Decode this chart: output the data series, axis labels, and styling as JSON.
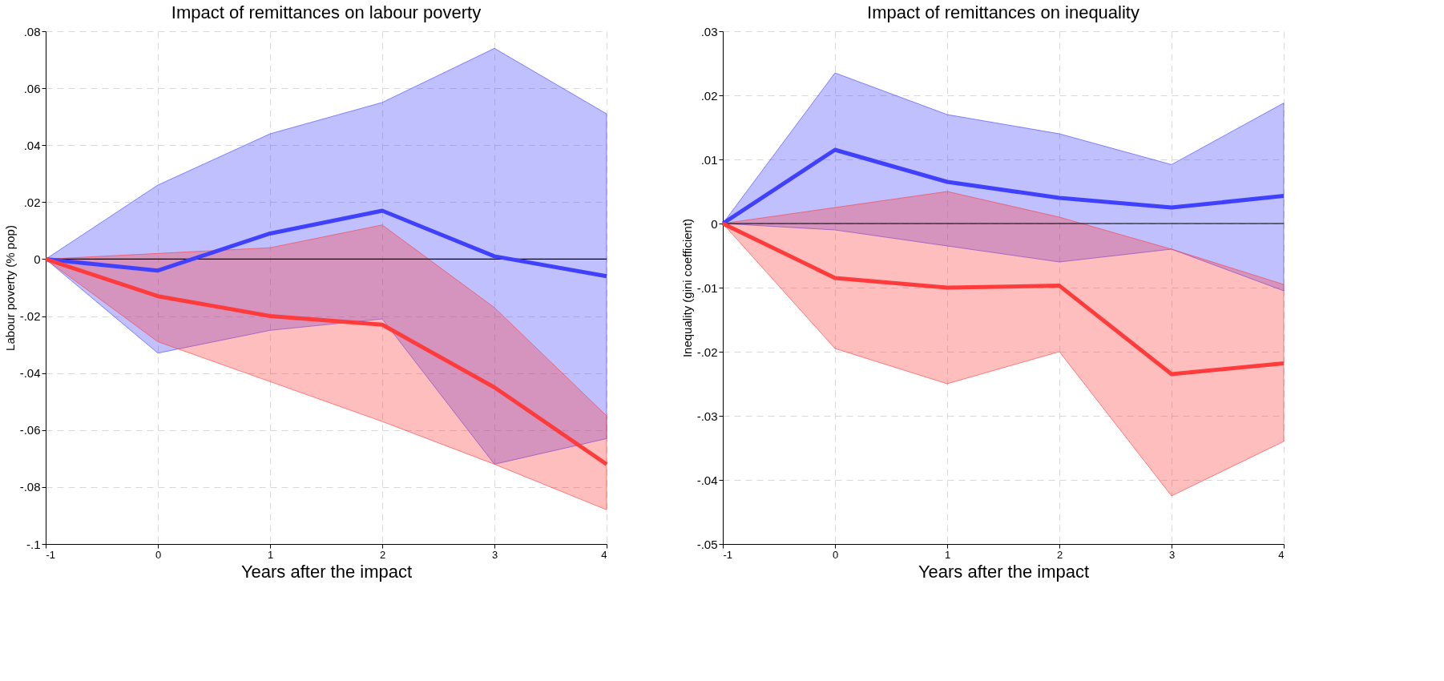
{
  "chart_data": [
    {
      "type": "line",
      "title": "Impact of remittances on labour poverty",
      "xlabel": "Years after the impact",
      "ylabel": "Labour poverty (% pop)",
      "x": [
        -1,
        0,
        1,
        2,
        3,
        4
      ],
      "xlim": [
        -1,
        4
      ],
      "xticks": [
        -1,
        0,
        1,
        2,
        3,
        4
      ],
      "ylim": [
        -0.1,
        0.08
      ],
      "yticks": [
        {
          "value": -0.1,
          "label": "-.1"
        },
        {
          "value": -0.08,
          "label": "-.08"
        },
        {
          "value": -0.06,
          "label": "-.06"
        },
        {
          "value": -0.04,
          "label": "-.04"
        },
        {
          "value": -0.02,
          "label": "-.02"
        },
        {
          "value": 0,
          "label": "0"
        },
        {
          "value": 0.02,
          "label": ".02"
        },
        {
          "value": 0.04,
          "label": ".04"
        },
        {
          "value": 0.06,
          "label": ".06"
        },
        {
          "value": 0.08,
          "label": ".08"
        }
      ],
      "grid": true,
      "line_style": "solid",
      "marker": "none",
      "ref_lines": [
        {
          "axis": "y",
          "value": 0,
          "color": "#000000"
        }
      ],
      "series": [
        {
          "color": "#4040ff",
          "values": [
            0,
            -0.004,
            0.009,
            0.017,
            0.001,
            -0.006
          ],
          "lower": [
            0,
            -0.033,
            -0.025,
            -0.021,
            -0.072,
            -0.063
          ],
          "upper": [
            0,
            0.026,
            0.044,
            0.055,
            0.074,
            0.051
          ]
        },
        {
          "color": "#ff3b3b",
          "values": [
            0,
            -0.013,
            -0.02,
            -0.023,
            -0.045,
            -0.072
          ],
          "lower": [
            0,
            -0.029,
            -0.043,
            -0.057,
            -0.072,
            -0.088
          ],
          "upper": [
            0,
            0.002,
            0.004,
            0.012,
            -0.017,
            -0.055
          ]
        }
      ]
    },
    {
      "type": "line",
      "title": "Impact of remittances on inequality",
      "xlabel": "Years after the impact",
      "ylabel": "Inequality (gini coefficient)",
      "x": [
        -1,
        0,
        1,
        2,
        3,
        4
      ],
      "xlim": [
        -1,
        4
      ],
      "xticks": [
        -1,
        0,
        1,
        2,
        3,
        4
      ],
      "ylim": [
        -0.05,
        0.03
      ],
      "yticks": [
        {
          "value": -0.05,
          "label": "-.05"
        },
        {
          "value": -0.04,
          "label": "-.04"
        },
        {
          "value": -0.03,
          "label": "-.03"
        },
        {
          "value": -0.02,
          "label": "-.02"
        },
        {
          "value": -0.01,
          "label": "-.01"
        },
        {
          "value": 0,
          "label": "0"
        },
        {
          "value": 0.01,
          "label": ".01"
        },
        {
          "value": 0.02,
          "label": ".02"
        },
        {
          "value": 0.03,
          "label": ".03"
        }
      ],
      "grid": true,
      "line_style": "solid",
      "marker": "none",
      "ref_lines": [
        {
          "axis": "y",
          "value": 0,
          "color": "#000000"
        }
      ],
      "series": [
        {
          "color": "#4040ff",
          "values": [
            0,
            0.0115,
            0.0065,
            0.004,
            0.0025,
            0.0043
          ],
          "lower": [
            0,
            -0.001,
            -0.0035,
            -0.006,
            -0.004,
            -0.0105
          ],
          "upper": [
            0,
            0.0235,
            0.017,
            0.014,
            0.0092,
            0.0188
          ]
        },
        {
          "color": "#ff3b3b",
          "values": [
            0,
            -0.0085,
            -0.01,
            -0.0097,
            -0.0235,
            -0.0218
          ],
          "lower": [
            0,
            -0.0195,
            -0.025,
            -0.02,
            -0.0425,
            -0.034
          ],
          "upper": [
            0,
            0.0025,
            0.005,
            0.001,
            -0.004,
            -0.0095
          ]
        }
      ]
    }
  ]
}
